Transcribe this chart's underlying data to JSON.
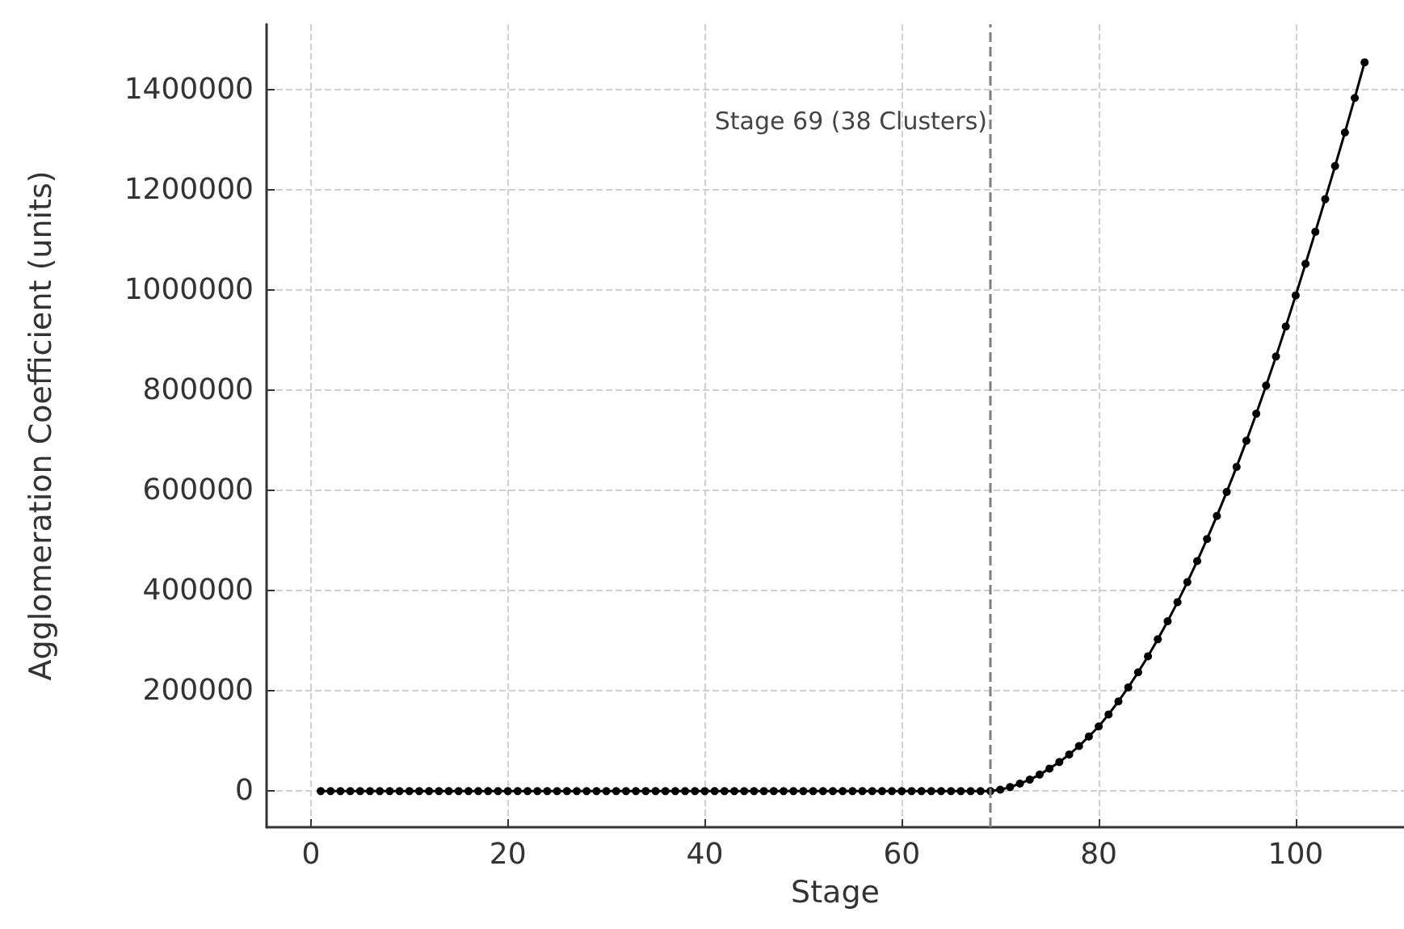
{
  "chart_data": {
    "type": "line",
    "xlabel": "Stage",
    "ylabel": "Agglomeration Coefficient (units)",
    "x": [
      1,
      2,
      3,
      4,
      5,
      6,
      7,
      8,
      9,
      10,
      11,
      12,
      13,
      14,
      15,
      16,
      17,
      18,
      19,
      20,
      21,
      22,
      23,
      24,
      25,
      26,
      27,
      28,
      29,
      30,
      31,
      32,
      33,
      34,
      35,
      36,
      37,
      38,
      39,
      40,
      41,
      42,
      43,
      44,
      45,
      46,
      47,
      48,
      49,
      50,
      51,
      52,
      53,
      54,
      55,
      56,
      57,
      58,
      59,
      60,
      61,
      62,
      63,
      64,
      65,
      66,
      67,
      68,
      69,
      70,
      71,
      72,
      73,
      74,
      75,
      76,
      77,
      78,
      79,
      80,
      81,
      82,
      83,
      84,
      85,
      86,
      87,
      88,
      89,
      90,
      91,
      92,
      93,
      94,
      95,
      96,
      97,
      98,
      99,
      100,
      101,
      102,
      103,
      104,
      105,
      106,
      107
    ],
    "series": [
      {
        "color": "#000000",
        "values": [
          0,
          0,
          0,
          0,
          0,
          0,
          0,
          0,
          0,
          0,
          0,
          0,
          0,
          0,
          0,
          0,
          0,
          0,
          0,
          0,
          0,
          0,
          0,
          0,
          0,
          0,
          0,
          0,
          0,
          0,
          0,
          0,
          0,
          0,
          0,
          0,
          0,
          0,
          0,
          0,
          0,
          0,
          0,
          0,
          0,
          0,
          0,
          0,
          0,
          0,
          0,
          0,
          0,
          0,
          0,
          0,
          0,
          0,
          0,
          0,
          0,
          0,
          0,
          0,
          0,
          0,
          0,
          0,
          0,
          3000,
          8000,
          15000,
          23000,
          33000,
          45000,
          58000,
          73000,
          90000,
          109000,
          129000,
          153000,
          179000,
          207000,
          237000,
          269000,
          303000,
          339000,
          377000,
          417000,
          459000,
          503000,
          549000,
          597000,
          647000,
          699000,
          753000,
          809000,
          867000,
          927000,
          989000,
          1052000,
          1116000,
          1181000,
          1247000,
          1314000,
          1383000,
          1454000
        ]
      }
    ],
    "xlim": [
      -4.5,
      111
    ],
    "xticks": [
      0,
      20,
      40,
      60,
      80,
      100
    ],
    "ylim": [
      -72000,
      1530000
    ],
    "yticks": [
      0,
      200000,
      400000,
      600000,
      800000,
      1000000,
      1200000,
      1400000
    ],
    "ref_lines": [
      {
        "axis": "x",
        "value": 69,
        "label": "Stage 69 (38 Clusters)",
        "color": "#808080",
        "line_style": "dashed"
      }
    ],
    "grid": true,
    "marker": "circle",
    "line_style": "solid"
  }
}
